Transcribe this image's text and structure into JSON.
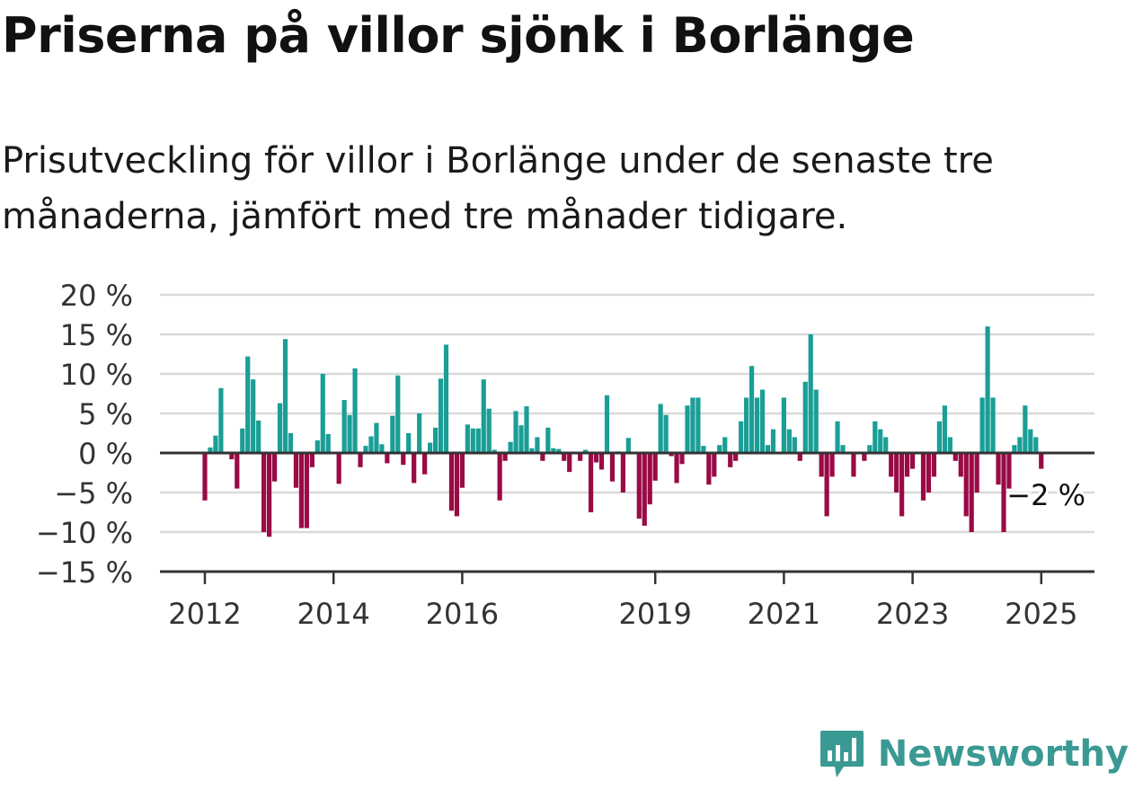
{
  "title": "Priserna på villor sjönk i Borlänge",
  "subtitle": "Prisutveckling för villor i Borlänge under de senaste tre månaderna, jämfört med tre månader tidigare.",
  "brand": "Newsworthy",
  "colors": {
    "positive": "#1a9e96",
    "negative": "#9a0a45",
    "grid": "#d9d9d9",
    "axis": "#333333",
    "brand": "#3a9a93"
  },
  "chart_data": {
    "type": "bar",
    "ylim": [
      -15,
      20
    ],
    "y_ticks": [
      20,
      15,
      10,
      5,
      0,
      -5,
      -10,
      -15
    ],
    "y_tick_labels": [
      "20 %",
      "15 %",
      "10 %",
      "5 %",
      "0 %",
      "−5 %",
      "−10 %",
      "−15 %"
    ],
    "x_ticks": [
      2012,
      2014,
      2016,
      2019,
      2021,
      2023,
      2025
    ],
    "x_tick_labels": [
      "2012",
      "2014",
      "2016",
      "2019",
      "2021",
      "2023",
      "2025"
    ],
    "x_start": 2012.0,
    "step_years": 0.08333,
    "annotation": {
      "label": "−2 %",
      "value": -2
    },
    "grid": true,
    "values": [
      -6,
      0.7,
      2.2,
      8.2,
      0,
      -0.8,
      -4.5,
      3.1,
      12.2,
      9.3,
      4.1,
      -10,
      -10.6,
      -3.6,
      6.3,
      14.4,
      2.5,
      -4.4,
      -9.5,
      -9.5,
      -1.8,
      1.6,
      10,
      2.4,
      0,
      -3.9,
      6.7,
      4.8,
      10.7,
      -1.8,
      0.9,
      2.1,
      3.8,
      1.1,
      -1.3,
      4.7,
      9.8,
      -1.5,
      2.5,
      -3.8,
      5,
      -2.7,
      1.3,
      3.2,
      9.4,
      13.7,
      -7.3,
      -8,
      -4.4,
      3.6,
      3.1,
      3.1,
      9.3,
      5.6,
      0.4,
      -6,
      -1,
      1.4,
      5.3,
      3.5,
      5.9,
      0.6,
      2,
      -1,
      3.2,
      0.6,
      0.5,
      -1,
      -2.4,
      0,
      -1,
      0.4,
      -7.5,
      -1.2,
      -2.1,
      7.3,
      -3.6,
      0.2,
      -5,
      1.9,
      0,
      -8.3,
      -9.2,
      -6.5,
      -3.5,
      6.2,
      4.8,
      -0.4,
      -3.8,
      -1.4,
      6,
      7,
      7,
      0.9,
      -4,
      -3,
      1,
      2,
      -1.8,
      -1,
      4,
      7,
      11,
      7,
      8,
      1,
      3,
      0,
      7,
      3,
      2,
      -1,
      9,
      15,
      8,
      -3,
      -8,
      -3,
      4,
      1,
      0,
      -3,
      0,
      -1,
      1,
      4,
      3,
      2,
      -3,
      -5,
      -8,
      -3,
      -2,
      0,
      -6,
      -5,
      -3,
      4,
      6,
      2,
      -1,
      -3,
      -8,
      -10,
      -5,
      7,
      16,
      7,
      -4,
      -10,
      -4.5,
      1,
      2,
      6,
      3,
      2,
      -2
    ]
  }
}
